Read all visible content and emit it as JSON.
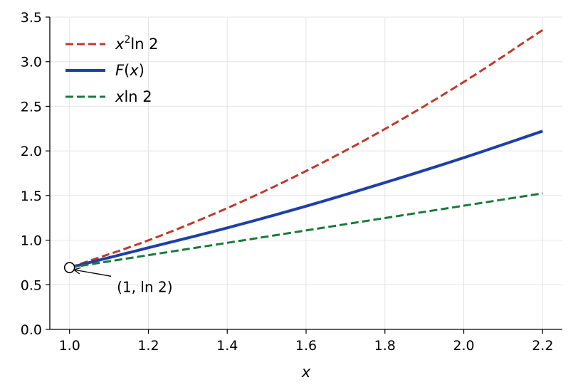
{
  "chart_data": {
    "type": "line",
    "title": "",
    "xlabel": "x",
    "ylabel": "",
    "xlim": [
      0.95,
      2.25
    ],
    "ylim": [
      0,
      3.5
    ],
    "grid": true,
    "legend_position": "top-left",
    "x_ticks": [
      1.0,
      1.2,
      1.4,
      1.6,
      1.8,
      2.0,
      2.2
    ],
    "x_tick_labels": [
      "1.0",
      "1.2",
      "1.4",
      "1.6",
      "1.8",
      "2.0",
      "2.2"
    ],
    "y_ticks": [
      0.0,
      0.5,
      1.0,
      1.5,
      2.0,
      2.5,
      3.0,
      3.5
    ],
    "y_tick_labels": [
      "0.0",
      "0.5",
      "1.0",
      "1.5",
      "2.0",
      "2.5",
      "3.0",
      "3.5"
    ],
    "x": [
      1.0,
      1.2,
      1.4,
      1.6,
      1.8,
      2.0,
      2.2
    ],
    "series": [
      {
        "name": "x²ln 2",
        "label_base": "x",
        "label_sup": "2",
        "label_rest": "ln 2",
        "color": "#c0392b",
        "style": "dashed",
        "values": [
          0.693,
          0.998,
          1.359,
          1.775,
          2.246,
          2.773,
          3.355
        ]
      },
      {
        "name": "F(x)",
        "label_base": "F",
        "label_sup": "",
        "label_rest": "(x)",
        "color": "#1f3fa8",
        "style": "solid",
        "values": [
          0.693,
          0.915,
          1.138,
          1.381,
          1.645,
          1.924,
          2.222
        ]
      },
      {
        "name": "xln 2",
        "label_base": "x",
        "label_sup": "",
        "label_rest": "ln 2",
        "color": "#1a7a3a",
        "style": "dashed",
        "values": [
          0.693,
          0.832,
          0.97,
          1.109,
          1.248,
          1.386,
          1.525
        ]
      }
    ],
    "annotations": [
      {
        "text": "(1, ln 2)",
        "x": 1.0,
        "y": 0.693,
        "text_x": 1.12,
        "text_y": 0.42
      }
    ]
  }
}
